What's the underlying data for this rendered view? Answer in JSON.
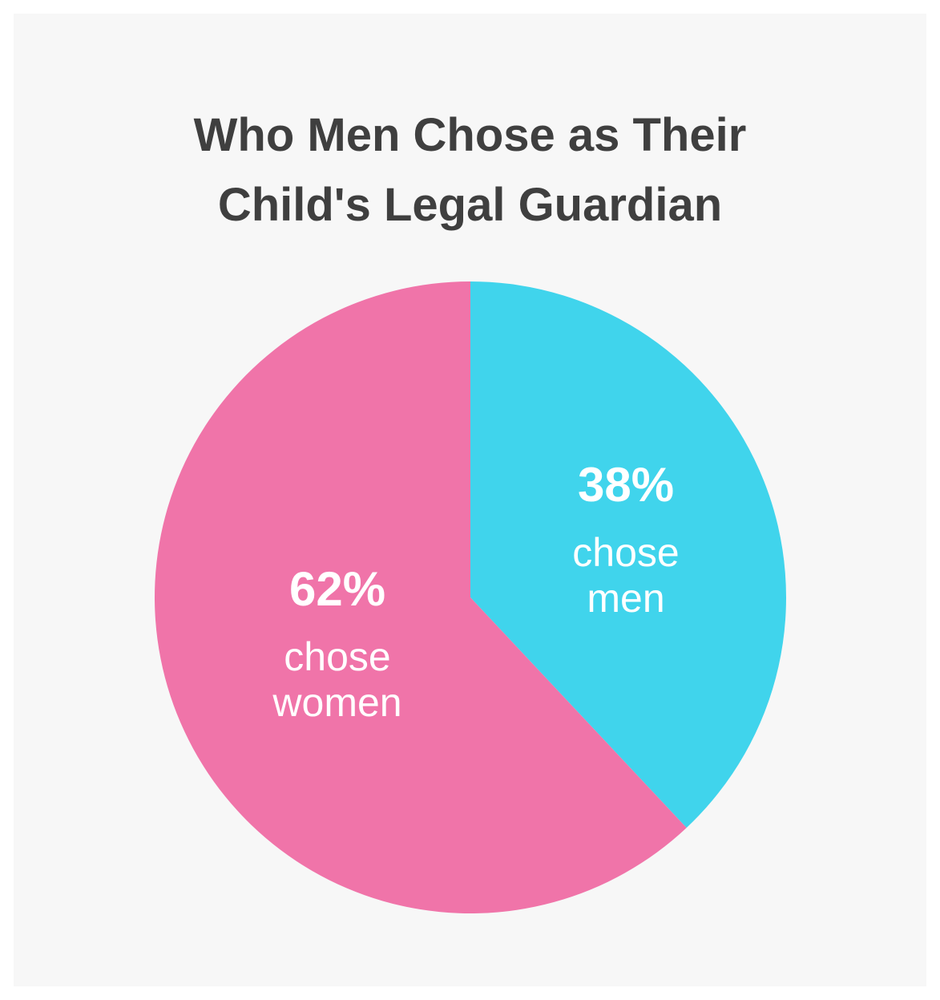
{
  "chart_data": {
    "type": "pie",
    "title_lines": [
      "Who Men Chose as Their",
      "Child's Legal Guardian"
    ],
    "slices": [
      {
        "label_lines": [
          "chose",
          "men"
        ],
        "percent_label": "38%",
        "value": 38,
        "color": "#40d4ec"
      },
      {
        "label_lines": [
          "chose",
          "women"
        ],
        "percent_label": "62%",
        "value": 62,
        "color": "#f074a9"
      }
    ],
    "start": "top",
    "direction": "clockwise"
  },
  "colors": {
    "background": "#f7f7f7",
    "title": "#3f3f3f",
    "label": "#ffffff"
  }
}
